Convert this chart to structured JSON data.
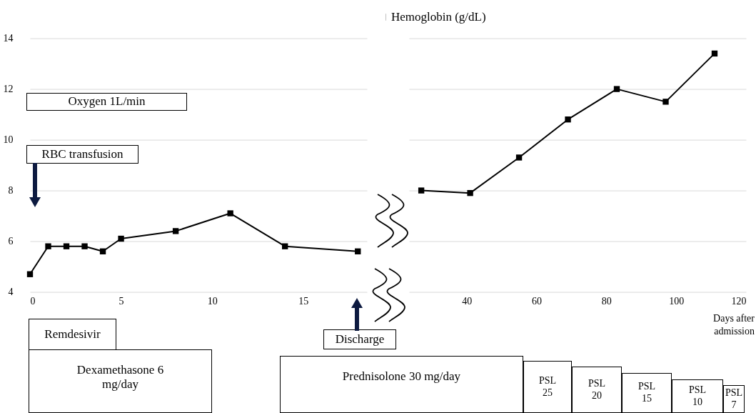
{
  "chart_data": [
    {
      "type": "line",
      "x": [
        0,
        1,
        2,
        3,
        4,
        5,
        8,
        11,
        14,
        18
      ],
      "series": [
        {
          "color": "#000000",
          "values": [
            4.7,
            5.8,
            5.8,
            5.8,
            5.6,
            6.1,
            6.4,
            7.1,
            5.8,
            5.6
          ]
        }
      ],
      "xlim": [
        0,
        18.5
      ],
      "xticks": [
        0,
        5,
        10,
        15
      ],
      "ylim": [
        4,
        14
      ],
      "yticks": [
        4,
        6,
        8,
        10,
        12,
        14
      ],
      "grid": "y",
      "marker": "square",
      "annotations": [
        "Oxygen 1L/min",
        "RBC transfusion",
        "Remdesivir",
        "Dexamethasone 6 mg/day",
        "Discharge"
      ]
    },
    {
      "type": "line",
      "x": [
        27,
        41,
        55,
        69,
        83,
        97,
        111
      ],
      "series": [
        {
          "name": "Hemoglobin (g/dL)",
          "color": "#000000",
          "values": [
            8.0,
            7.9,
            9.3,
            10.8,
            12.0,
            11.5,
            13.4
          ]
        }
      ],
      "xlim": [
        23.5,
        120
      ],
      "xticks": [
        40,
        60,
        80,
        100,
        120
      ],
      "ylim": [
        4,
        14
      ],
      "yticks": [
        4,
        6,
        8,
        10,
        12,
        14
      ],
      "grid": "y",
      "marker": "square",
      "legend": "top",
      "tick_labels": "x",
      "xlabel": "Days after admission",
      "annotations": [
        "Prednisolone 30 mg/day",
        "PSL 25",
        "PSL 20",
        "PSL 15",
        "PSL 10",
        "PSL 7"
      ]
    }
  ]
}
